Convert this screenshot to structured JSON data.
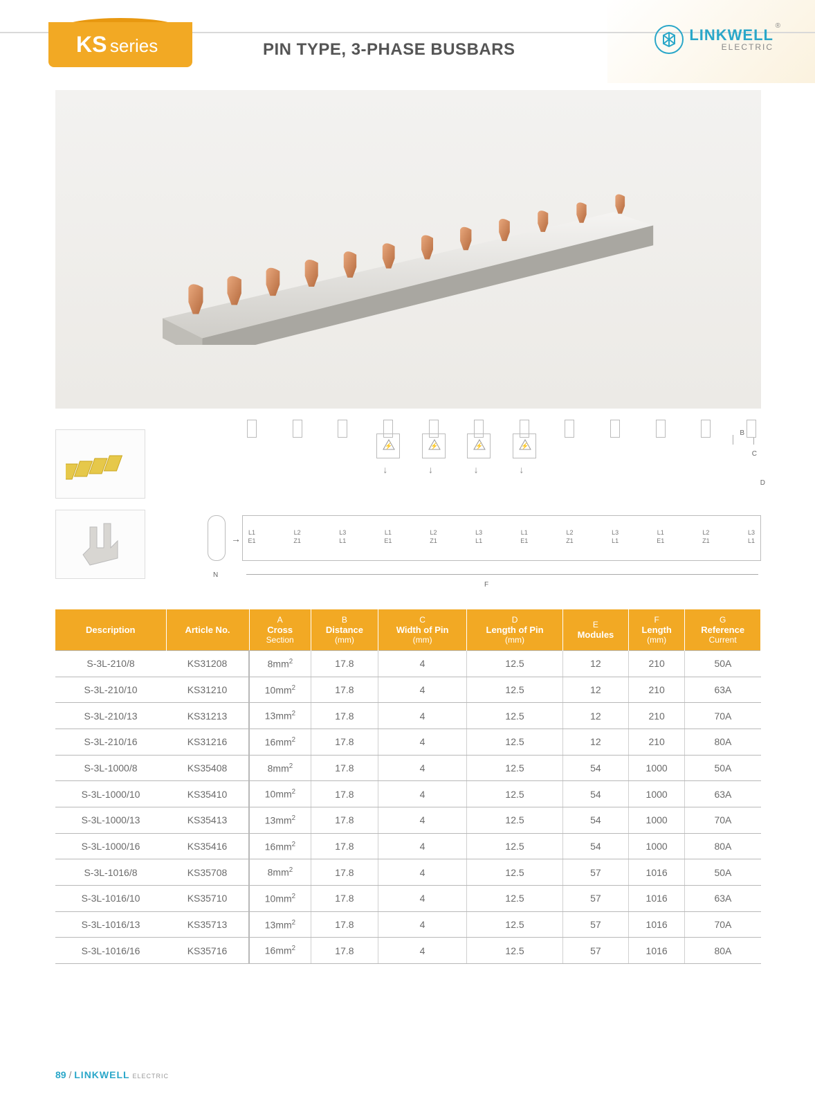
{
  "header": {
    "series_prefix": "KS",
    "series_word": "series",
    "title": "PIN TYPE, 3-PHASE BUSBARS",
    "brand": "LINKWELL",
    "brand_sub": "ELECTRIC",
    "accent_color": "#f2a924",
    "brand_color": "#2aa7c9"
  },
  "diagram": {
    "dimension_letters": [
      "A",
      "B",
      "C",
      "D",
      "E",
      "F",
      "G"
    ],
    "dim_B": "B",
    "dim_C": "C",
    "dim_D": "D",
    "dim_F": "F",
    "n_label": "N",
    "arrow_label": "→",
    "phase_labels": [
      "L1",
      "L2",
      "L3",
      "L1",
      "L2",
      "L3",
      "L1",
      "L2",
      "L3",
      "L1",
      "L2",
      "L3"
    ],
    "phase_labels_bot": [
      "E1",
      "Z1",
      "L1",
      "E1",
      "Z1",
      "L1",
      "E1",
      "Z1",
      "L1",
      "E1",
      "Z1",
      "L1"
    ]
  },
  "table": {
    "columns": [
      {
        "lead": "",
        "label": "Description"
      },
      {
        "lead": "",
        "label": "Article No."
      },
      {
        "lead": "A",
        "label": "Cross",
        "sub": "Section"
      },
      {
        "lead": "B",
        "label": "Distance",
        "sub": "(mm)"
      },
      {
        "lead": "C",
        "label": "Width of Pin",
        "sub": "(mm)"
      },
      {
        "lead": "D",
        "label": "Length of Pin",
        "sub": "(mm)"
      },
      {
        "lead": "E",
        "label": "Modules"
      },
      {
        "lead": "F",
        "label": "Length",
        "sub": "(mm)"
      },
      {
        "lead": "G",
        "label": "Reference",
        "sub": "Current"
      }
    ],
    "rows": [
      [
        "S-3L-210/8",
        "KS31208",
        "8mm²",
        "17.8",
        "4",
        "12.5",
        "12",
        "210",
        "50A"
      ],
      [
        "S-3L-210/10",
        "KS31210",
        "10mm²",
        "17.8",
        "4",
        "12.5",
        "12",
        "210",
        "63A"
      ],
      [
        "S-3L-210/13",
        "KS31213",
        "13mm²",
        "17.8",
        "4",
        "12.5",
        "12",
        "210",
        "70A"
      ],
      [
        "S-3L-210/16",
        "KS31216",
        "16mm²",
        "17.8",
        "4",
        "12.5",
        "12",
        "210",
        "80A"
      ],
      [
        "S-3L-1000/8",
        "KS35408",
        "8mm²",
        "17.8",
        "4",
        "12.5",
        "54",
        "1000",
        "50A"
      ],
      [
        "S-3L-1000/10",
        "KS35410",
        "10mm²",
        "17.8",
        "4",
        "12.5",
        "54",
        "1000",
        "63A"
      ],
      [
        "S-3L-1000/13",
        "KS35413",
        "13mm²",
        "17.8",
        "4",
        "12.5",
        "54",
        "1000",
        "70A"
      ],
      [
        "S-3L-1000/16",
        "KS35416",
        "16mm²",
        "17.8",
        "4",
        "12.5",
        "54",
        "1000",
        "80A"
      ],
      [
        "S-3L-1016/8",
        "KS35708",
        "8mm²",
        "17.8",
        "4",
        "12.5",
        "57",
        "1016",
        "50A"
      ],
      [
        "S-3L-1016/10",
        "KS35710",
        "10mm²",
        "17.8",
        "4",
        "12.5",
        "57",
        "1016",
        "63A"
      ],
      [
        "S-3L-1016/13",
        "KS35713",
        "13mm²",
        "17.8",
        "4",
        "12.5",
        "57",
        "1016",
        "70A"
      ],
      [
        "S-3L-1016/16",
        "KS35716",
        "16mm²",
        "17.8",
        "4",
        "12.5",
        "57",
        "1016",
        "80A"
      ]
    ]
  },
  "footer": {
    "page_number": "89",
    "brand": "LINKWELL",
    "brand_sub": "ELECTRIC"
  },
  "styling": {
    "header_bg": "#f2a924",
    "row_border": "#b8b8b8",
    "text_color": "#6a6a6a",
    "thumb_border": "#dddddd",
    "hero_bg_top": "#f3f2f0",
    "hero_bg_bottom": "#eceae6"
  }
}
